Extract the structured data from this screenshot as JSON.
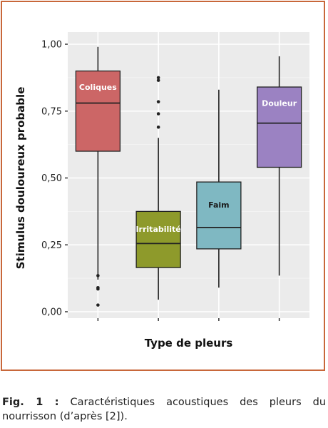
{
  "chart_data": {
    "type": "boxplot",
    "xlabel": "Type de pleurs",
    "ylabel": "Stimulus douloureux probable",
    "ylim": [
      0,
      1.0
    ],
    "yticks": [
      "0,00",
      "0,25",
      "0,50",
      "0,75",
      "1,00"
    ],
    "ytick_values": [
      0,
      0.25,
      0.5,
      0.75,
      1.0
    ],
    "grid": true,
    "categories": [
      "Coliques",
      "Irritabilité",
      "Faim",
      "Douleur"
    ],
    "boxes": [
      {
        "label": "Coliques",
        "min": 0.12,
        "q1": 0.6,
        "median": 0.78,
        "q3": 0.9,
        "max": 0.99,
        "outliers": [
          0.135,
          0.09,
          0.085,
          0.025
        ],
        "color": "#cc6666",
        "label_y": 0.84
      },
      {
        "label": "Irritabilité",
        "min": 0.045,
        "q1": 0.165,
        "median": 0.255,
        "q3": 0.375,
        "max": 0.65,
        "outliers": [
          0.69,
          0.74,
          0.785,
          0.865,
          0.875
        ],
        "color": "#8e9a2b",
        "label_y": 0.31
      },
      {
        "label": "Faim",
        "min": 0.09,
        "q1": 0.235,
        "median": 0.315,
        "q3": 0.485,
        "max": 0.83,
        "outliers": [],
        "color": "#7fb8c2",
        "label_y": 0.4
      },
      {
        "label": "Douleur",
        "min": 0.135,
        "q1": 0.54,
        "median": 0.705,
        "q3": 0.84,
        "max": 0.955,
        "outliers": [],
        "color": "#9b82c2",
        "label_y": 0.78
      }
    ]
  },
  "caption": {
    "label": "Fig. 1 :",
    "text": "Caractéristiques acoustiques des pleurs du nourrisson (d’après [2])."
  }
}
